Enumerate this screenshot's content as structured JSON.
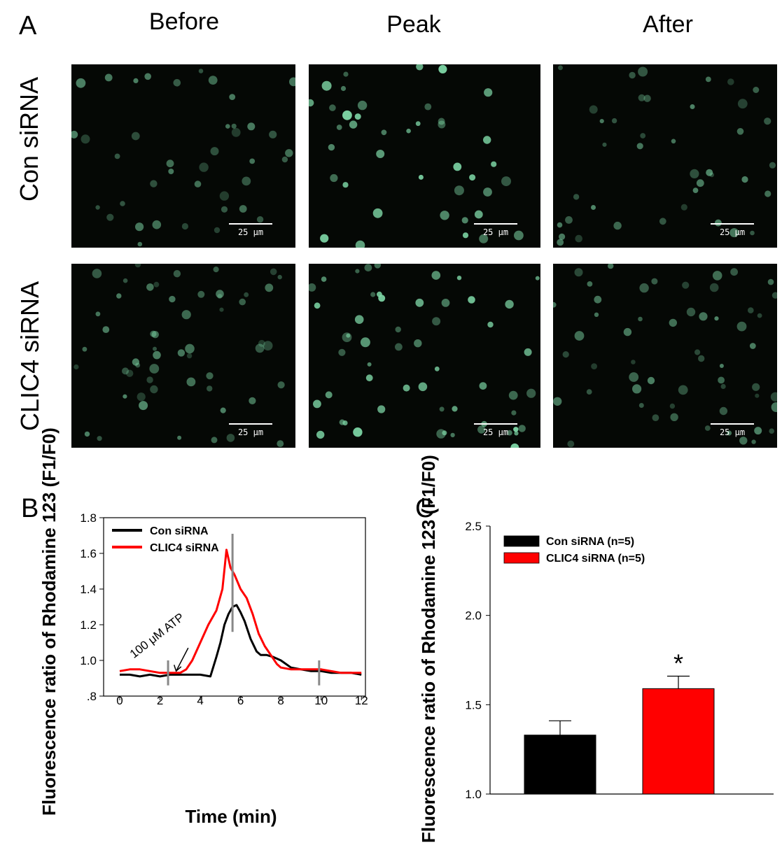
{
  "panel_letters": {
    "a": "A",
    "b": "B",
    "c": "C"
  },
  "panel_a": {
    "columns": [
      "Before",
      "Peak",
      "After"
    ],
    "rows": [
      "Con siRNA",
      "CLIC4 siRNA"
    ],
    "scale_label": "25 μm",
    "colors": {
      "background": "#050805",
      "cell": "#7fd9a8",
      "scale": "#ffffff"
    }
  },
  "chart_data": [
    {
      "type": "line",
      "panel": "B",
      "title": "",
      "xlabel": "Time (min)",
      "ylabel": "Fluorescence ratio of Rhodamine 123 (F1/F0)",
      "xlim": [
        -0.8,
        12.2
      ],
      "ylim": [
        0.8,
        1.8
      ],
      "xticks": [
        "0",
        "2",
        "4",
        "6",
        "8",
        "10",
        "12"
      ],
      "yticks": [
        ".8",
        "1.0",
        "1.2",
        "1.4",
        "1.6",
        "1.8"
      ],
      "annotation": "100 μM ATP",
      "legend_position": "top-left",
      "series": [
        {
          "name": "Con siRNA",
          "color": "#000000",
          "x": [
            0,
            0.5,
            1,
            1.5,
            2,
            2.5,
            3,
            3.5,
            4,
            4.5,
            4.8,
            5,
            5.2,
            5.4,
            5.6,
            5.8,
            6,
            6.2,
            6.5,
            6.8,
            7,
            7.3,
            7.6,
            8,
            8.5,
            9,
            9.5,
            10,
            10.5,
            11,
            11.5,
            12
          ],
          "y": [
            0.92,
            0.92,
            0.91,
            0.92,
            0.91,
            0.92,
            0.92,
            0.92,
            0.92,
            0.91,
            1.02,
            1.1,
            1.2,
            1.26,
            1.3,
            1.31,
            1.27,
            1.22,
            1.12,
            1.05,
            1.03,
            1.03,
            1.02,
            1.0,
            0.96,
            0.95,
            0.94,
            0.94,
            0.93,
            0.93,
            0.93,
            0.92
          ]
        },
        {
          "name": "CLIC4 siRNA",
          "color": "#ff0000",
          "x": [
            0,
            0.5,
            1,
            1.5,
            2,
            2.5,
            3,
            3.3,
            3.6,
            4,
            4.4,
            4.8,
            5.1,
            5.3,
            5.5,
            5.7,
            6,
            6.3,
            6.6,
            6.9,
            7.2,
            7.5,
            7.8,
            8,
            8.5,
            9,
            9.5,
            10,
            10.5,
            11,
            11.5,
            12
          ],
          "y": [
            0.94,
            0.95,
            0.95,
            0.94,
            0.93,
            0.93,
            0.93,
            0.95,
            1.0,
            1.1,
            1.2,
            1.28,
            1.4,
            1.62,
            1.52,
            1.48,
            1.4,
            1.35,
            1.26,
            1.15,
            1.08,
            1.03,
            0.98,
            0.96,
            0.95,
            0.95,
            0.95,
            0.95,
            0.94,
            0.93,
            0.93,
            0.93
          ]
        }
      ],
      "markers_x": [
        2.4,
        5.6,
        9.9
      ]
    },
    {
      "type": "bar",
      "panel": "C",
      "title": "",
      "xlabel": "",
      "ylabel": "Fluorescence ratio of Rhodamine 123 (F1/F0)",
      "ylim": [
        1.0,
        2.5
      ],
      "yticks": [
        "1.0",
        "1.5",
        "2.0",
        "2.5"
      ],
      "categories": [
        "Con siRNA (n=5)",
        "CLIC4 siRNA (n=5)"
      ],
      "values": [
        1.33,
        1.59
      ],
      "errors": [
        0.08,
        0.07
      ],
      "colors": [
        "#000000",
        "#ff0000"
      ],
      "significance": [
        "",
        "*"
      ],
      "legend_position": "top-left"
    }
  ]
}
